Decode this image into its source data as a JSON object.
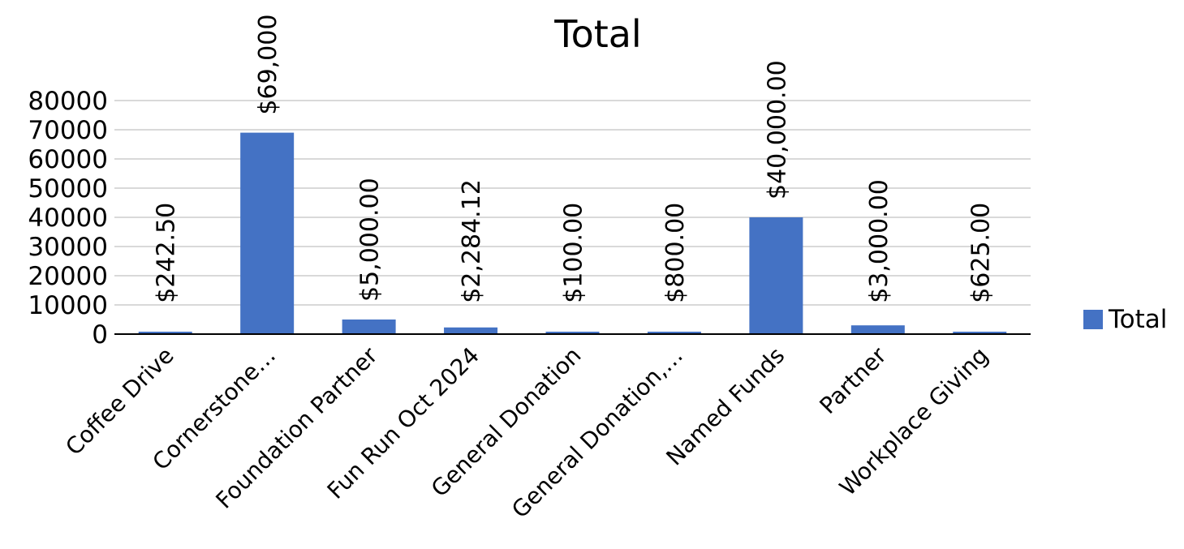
{
  "chart_data": {
    "type": "bar",
    "title": "Total",
    "categories": [
      "Coffee Drive",
      "Cornerstone…",
      "Foundation Partner",
      "Fun Run Oct 2024",
      "General Donation",
      "General Donation,…",
      "Named Funds",
      "Partner",
      "Workplace Giving"
    ],
    "series": [
      {
        "name": "Total",
        "color": "#4472C4",
        "values": [
          242.5,
          69000,
          5000,
          2284.12,
          100,
          800,
          40000,
          3000,
          625
        ],
        "data_labels": [
          "$242.50",
          "$69,000",
          "$5,000.00",
          "$2,284.12",
          "$100.00",
          "$800.00",
          "$40,000.00",
          "$3,000.00",
          "$625.00"
        ]
      }
    ],
    "y_ticks": [
      "0",
      "10000",
      "20000",
      "30000",
      "40000",
      "50000",
      "60000",
      "70000",
      "80000"
    ],
    "ylim": [
      0,
      80000
    ],
    "xlabel": "",
    "ylabel": "",
    "grid": true,
    "legend": {
      "position": "right",
      "label": "Total"
    }
  }
}
